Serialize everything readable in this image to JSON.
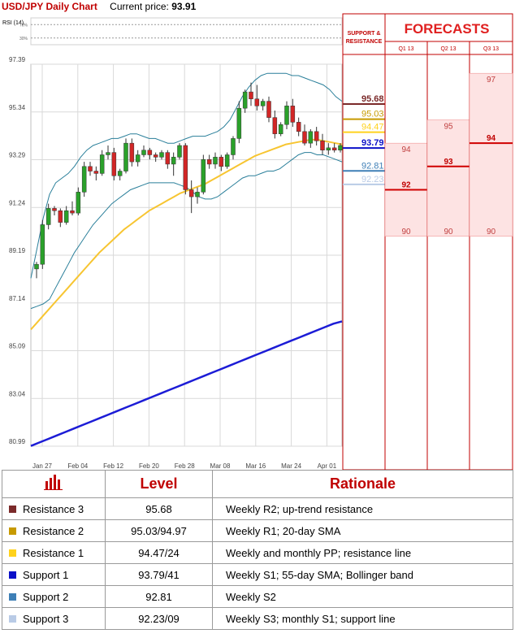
{
  "header": {
    "title": "USD/JPY Daily Chart",
    "price_label": "Current price:",
    "price_value": "93.91"
  },
  "rsi": {
    "label": "RSI (14)",
    "upper": "70%",
    "lower": "30%"
  },
  "sr_header": "SUPPORT & RESISTANCE",
  "forecasts": {
    "title": "FORECASTS",
    "columns": [
      {
        "label": "Q1 13",
        "high": 94,
        "mid": 92,
        "low": 90
      },
      {
        "label": "Q2 13",
        "high": 95,
        "mid": 93,
        "low": 90
      },
      {
        "label": "Q3 13",
        "high": 97,
        "mid": 94,
        "low": 90
      }
    ]
  },
  "chart_data": {
    "type": "candlestick",
    "title": "USD/JPY Daily Chart",
    "ylim": [
      80.99,
      97.39
    ],
    "y_ticks": [
      "97.39",
      "95.34",
      "93.29",
      "91.24",
      "89.19",
      "87.14",
      "85.09",
      "83.04",
      "80.99"
    ],
    "x_ticks": [
      "Jan 27",
      "Feb 04",
      "Feb 12",
      "Feb 20",
      "Feb 28",
      "Mar 08",
      "Mar 16",
      "Mar 24",
      "Apr 01"
    ],
    "candles": [
      {
        "o": 88.6,
        "h": 88.9,
        "l": 88.2,
        "c": 88.8
      },
      {
        "o": 88.8,
        "h": 90.7,
        "l": 88.6,
        "c": 90.5
      },
      {
        "o": 90.5,
        "h": 91.4,
        "l": 90.3,
        "c": 91.2
      },
      {
        "o": 91.2,
        "h": 91.3,
        "l": 90.9,
        "c": 91.1
      },
      {
        "o": 91.1,
        "h": 91.2,
        "l": 90.4,
        "c": 90.6
      },
      {
        "o": 90.6,
        "h": 91.3,
        "l": 90.5,
        "c": 91.1
      },
      {
        "o": 91.1,
        "h": 91.5,
        "l": 90.9,
        "c": 91.0
      },
      {
        "o": 91.0,
        "h": 92.1,
        "l": 90.9,
        "c": 91.9
      },
      {
        "o": 91.9,
        "h": 93.2,
        "l": 91.7,
        "c": 93.0
      },
      {
        "o": 93.0,
        "h": 93.2,
        "l": 92.6,
        "c": 92.8
      },
      {
        "o": 92.8,
        "h": 93.0,
        "l": 92.4,
        "c": 92.7
      },
      {
        "o": 92.7,
        "h": 93.7,
        "l": 92.6,
        "c": 93.5
      },
      {
        "o": 93.5,
        "h": 93.9,
        "l": 93.3,
        "c": 93.6
      },
      {
        "o": 93.6,
        "h": 93.8,
        "l": 92.4,
        "c": 92.6
      },
      {
        "o": 92.6,
        "h": 92.9,
        "l": 92.4,
        "c": 92.8
      },
      {
        "o": 92.8,
        "h": 94.2,
        "l": 92.7,
        "c": 94.0
      },
      {
        "o": 94.0,
        "h": 94.2,
        "l": 93.0,
        "c": 93.2
      },
      {
        "o": 93.2,
        "h": 93.7,
        "l": 93.0,
        "c": 93.5
      },
      {
        "o": 93.5,
        "h": 93.9,
        "l": 93.4,
        "c": 93.7
      },
      {
        "o": 93.7,
        "h": 93.8,
        "l": 93.3,
        "c": 93.5
      },
      {
        "o": 93.5,
        "h": 93.6,
        "l": 93.2,
        "c": 93.4
      },
      {
        "o": 93.4,
        "h": 93.7,
        "l": 93.3,
        "c": 93.6
      },
      {
        "o": 93.6,
        "h": 93.7,
        "l": 92.9,
        "c": 93.1
      },
      {
        "o": 93.1,
        "h": 93.6,
        "l": 92.6,
        "c": 93.4
      },
      {
        "o": 93.4,
        "h": 94.0,
        "l": 93.3,
        "c": 93.9
      },
      {
        "o": 93.9,
        "h": 94.0,
        "l": 91.8,
        "c": 92.0
      },
      {
        "o": 92.0,
        "h": 92.4,
        "l": 91.0,
        "c": 91.7
      },
      {
        "o": 91.7,
        "h": 92.1,
        "l": 91.4,
        "c": 91.9
      },
      {
        "o": 91.9,
        "h": 93.5,
        "l": 91.8,
        "c": 93.3
      },
      {
        "o": 93.3,
        "h": 93.5,
        "l": 92.9,
        "c": 93.1
      },
      {
        "o": 93.1,
        "h": 93.6,
        "l": 92.9,
        "c": 93.4
      },
      {
        "o": 93.4,
        "h": 93.5,
        "l": 92.8,
        "c": 93.0
      },
      {
        "o": 93.0,
        "h": 93.6,
        "l": 92.9,
        "c": 93.5
      },
      {
        "o": 93.5,
        "h": 94.3,
        "l": 93.3,
        "c": 94.2
      },
      {
        "o": 94.2,
        "h": 95.8,
        "l": 94.0,
        "c": 95.5
      },
      {
        "o": 95.5,
        "h": 96.3,
        "l": 95.3,
        "c": 96.2
      },
      {
        "o": 96.2,
        "h": 96.6,
        "l": 95.6,
        "c": 95.9
      },
      {
        "o": 95.9,
        "h": 96.5,
        "l": 95.4,
        "c": 95.6
      },
      {
        "o": 95.6,
        "h": 95.9,
        "l": 95.4,
        "c": 95.8
      },
      {
        "o": 95.8,
        "h": 96.0,
        "l": 94.9,
        "c": 95.1
      },
      {
        "o": 95.1,
        "h": 95.4,
        "l": 94.2,
        "c": 94.4
      },
      {
        "o": 94.4,
        "h": 94.9,
        "l": 94.3,
        "c": 94.8
      },
      {
        "o": 94.8,
        "h": 95.8,
        "l": 94.6,
        "c": 95.6
      },
      {
        "o": 95.6,
        "h": 95.9,
        "l": 94.7,
        "c": 94.9
      },
      {
        "o": 94.9,
        "h": 95.1,
        "l": 94.3,
        "c": 94.5
      },
      {
        "o": 94.5,
        "h": 94.8,
        "l": 93.9,
        "c": 94.0
      },
      {
        "o": 94.0,
        "h": 94.6,
        "l": 93.8,
        "c": 94.5
      },
      {
        "o": 94.5,
        "h": 94.7,
        "l": 93.9,
        "c": 94.1
      },
      {
        "o": 94.1,
        "h": 94.4,
        "l": 93.5,
        "c": 93.7
      },
      {
        "o": 93.7,
        "h": 94.0,
        "l": 93.5,
        "c": 93.8
      },
      {
        "o": 93.8,
        "h": 94.0,
        "l": 93.6,
        "c": 93.7
      },
      {
        "o": 93.7,
        "h": 94.0,
        "l": 93.6,
        "c": 93.9
      }
    ],
    "sma_20": [
      86.0,
      86.3,
      86.6,
      86.9,
      87.2,
      87.5,
      87.8,
      88.1,
      88.4,
      88.7,
      89.0,
      89.3,
      89.55,
      89.8,
      90.05,
      90.3,
      90.5,
      90.7,
      90.9,
      91.1,
      91.25,
      91.4,
      91.55,
      91.7,
      91.85,
      91.95,
      92.05,
      92.15,
      92.25,
      92.4,
      92.55,
      92.7,
      92.85,
      93.0,
      93.15,
      93.3,
      93.45,
      93.55,
      93.65,
      93.75,
      93.85,
      93.95,
      94.0,
      94.05,
      94.1,
      94.15,
      94.15,
      94.1,
      94.05,
      94.0,
      93.95
    ],
    "sma_200": [
      81.0,
      81.15,
      81.3,
      81.45,
      81.6,
      81.75,
      81.9,
      82.05,
      82.2,
      82.35,
      82.5,
      82.65,
      82.8,
      82.95,
      83.1,
      83.25,
      83.4,
      83.55,
      83.7,
      83.85,
      84.0,
      84.15,
      84.3,
      84.45,
      84.6,
      84.75,
      84.9,
      85.05,
      85.2,
      85.35,
      85.5,
      85.65,
      85.8,
      85.95,
      86.1,
      86.25,
      86.35
    ],
    "bb_upper": [
      88.2,
      89.5,
      90.8,
      91.8,
      92.3,
      92.5,
      92.7,
      93.0,
      93.4,
      93.7,
      93.9,
      94.0,
      94.1,
      94.2,
      94.2,
      94.3,
      94.4,
      94.4,
      94.3,
      94.2,
      94.2,
      94.1,
      94.0,
      94.0,
      94.1,
      94.2,
      94.3,
      94.3,
      94.3,
      94.4,
      94.5,
      94.7,
      95.0,
      95.5,
      96.0,
      96.4,
      96.7,
      96.9,
      97.0,
      97.0,
      97.0,
      97.0,
      96.9,
      96.9,
      96.8,
      96.7,
      96.6,
      96.5,
      96.3,
      96.0,
      95.8
    ],
    "bb_lower": [
      86.9,
      87.0,
      87.1,
      87.3,
      87.8,
      88.3,
      88.8,
      89.3,
      89.7,
      90.1,
      90.5,
      90.8,
      91.1,
      91.4,
      91.6,
      91.8,
      92.0,
      92.1,
      92.2,
      92.3,
      92.3,
      92.3,
      92.3,
      92.3,
      92.2,
      92.1,
      91.9,
      91.7,
      91.6,
      91.6,
      91.7,
      91.9,
      92.1,
      92.3,
      92.5,
      92.6,
      92.6,
      92.7,
      92.8,
      92.8,
      92.9,
      93.1,
      93.3,
      93.5,
      93.6,
      93.6,
      93.5,
      93.5,
      93.4,
      93.3,
      93.2
    ],
    "rsi": [
      52,
      60,
      63,
      64,
      62,
      62,
      63,
      66,
      70,
      69,
      67,
      69,
      71,
      70,
      67,
      66,
      68,
      67,
      67,
      68,
      67,
      67,
      66,
      66,
      67,
      62,
      60,
      61,
      64,
      64,
      65,
      64,
      65,
      68,
      72,
      74,
      72,
      70,
      71,
      66,
      63,
      64,
      67,
      64,
      62,
      60,
      62,
      61,
      59,
      60,
      61
    ]
  },
  "levels": {
    "header_level": "Level",
    "header_rationale": "Rationale",
    "rows": [
      {
        "name": "Resistance 3",
        "level": "95.68",
        "rationale": "Weekly R2; up-trend resistance",
        "color": "#7b2a2a",
        "value": 95.68
      },
      {
        "name": "Resistance 2",
        "level": "95.03/94.97",
        "rationale": "Weekly R1; 20-day SMA",
        "color": "#c79a00",
        "value": 95.03
      },
      {
        "name": "Resistance 1",
        "level": "94.47/24",
        "rationale": "Weekly and monthly PP; resistance line",
        "color": "#ffd21c",
        "value": 94.47
      },
      {
        "name": "Support 1",
        "level": "93.79/41",
        "rationale": "Weekly S1; 55-day SMA; Bollinger band",
        "color": "#0b10c8",
        "value": 93.79
      },
      {
        "name": "Support 2",
        "level": "92.81",
        "rationale": "Weekly S2",
        "color": "#3e7fb6",
        "value": 92.81
      },
      {
        "name": "Support 3",
        "level": "92.23/09",
        "rationale": "Weekly S3; monthly S1; support line",
        "color": "#b9cbe6",
        "value": 92.23
      }
    ]
  }
}
